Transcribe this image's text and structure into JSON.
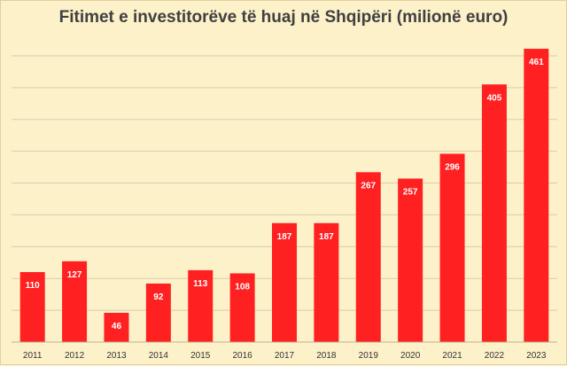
{
  "chart_data": {
    "type": "bar",
    "title": "Fitimet e investitorëve të huaj në Shqipëri (milionë euro)",
    "categories": [
      "2011",
      "2012",
      "2013",
      "2014",
      "2015",
      "2016",
      "2017",
      "2018",
      "2019",
      "2020",
      "2021",
      "2022",
      "2023"
    ],
    "values": [
      110,
      127,
      46,
      92,
      113,
      108,
      187,
      187,
      267,
      257,
      296,
      405,
      461
    ],
    "xlabel": "",
    "ylabel": "",
    "ylim": [
      0,
      475
    ],
    "grid": true,
    "legend": "none",
    "bar_color": "#ff2121",
    "background_color": "#fdf1c9"
  }
}
